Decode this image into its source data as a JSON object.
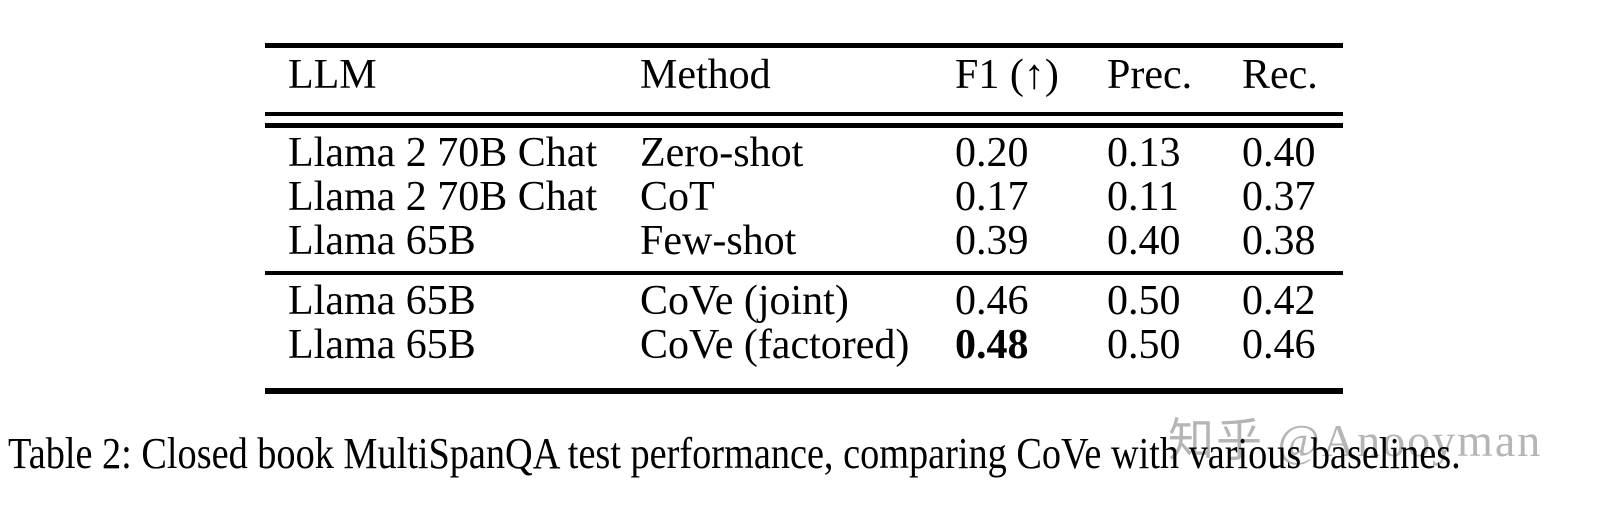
{
  "table": {
    "columns": [
      "LLM",
      "Method",
      "F1 (↑)",
      "Prec.",
      "Rec."
    ],
    "rows": [
      {
        "llm": "Llama 2 70B Chat",
        "method": "Zero-shot",
        "f1": "0.20",
        "prec": "0.13",
        "rec": "0.40",
        "f1_bold": false
      },
      {
        "llm": "Llama 2 70B Chat",
        "method": "CoT",
        "f1": "0.17",
        "prec": "0.11",
        "rec": "0.37",
        "f1_bold": false
      },
      {
        "llm": "Llama 65B",
        "method": "Few-shot",
        "f1": "0.39",
        "prec": "0.40",
        "rec": "0.38",
        "f1_bold": false
      },
      {
        "llm": "Llama 65B",
        "method": "CoVe (joint)",
        "f1": "0.46",
        "prec": "0.50",
        "rec": "0.42",
        "f1_bold": false
      },
      {
        "llm": "Llama 65B",
        "method": "CoVe (factored)",
        "f1": "0.48",
        "prec": "0.50",
        "rec": "0.46",
        "f1_bold": true
      }
    ]
  },
  "caption": {
    "text": "Table 2: Closed book MultiSpanQA test performance, comparing CoVe with various baselines."
  },
  "watermark": {
    "text": "知乎 @Anooyman",
    "color": "#b5b5b5"
  }
}
